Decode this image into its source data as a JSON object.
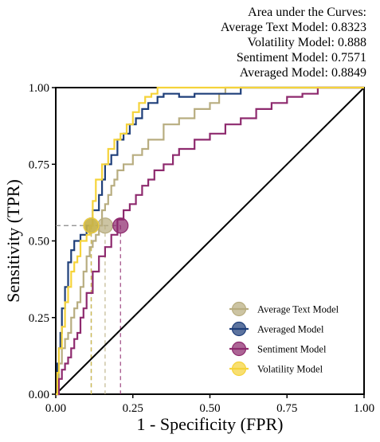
{
  "chart_data": {
    "type": "line",
    "title": "",
    "xlabel": "1 - Specificity (FPR)",
    "ylabel": "Sensitivity (TPR)",
    "xlim": [
      0,
      1
    ],
    "ylim": [
      0,
      1
    ],
    "x_ticks": [
      "0.00",
      "0.25",
      "0.50",
      "0.75",
      "1.00"
    ],
    "y_ticks": [
      "0.00",
      "0.25",
      "0.50",
      "0.75",
      "1.00"
    ],
    "grid": false,
    "legend_position": "bottom-right",
    "auc_box": {
      "lines": [
        "Area under the Curves:",
        "Average Text Model: 0.8323",
        "Volatility Model: 0.888",
        "Sentiment Model: 0.7571",
        "Averaged Model: 0.8849"
      ]
    },
    "diagonal": {
      "x": [
        0,
        1
      ],
      "y": [
        0,
        1
      ],
      "color": "#000000"
    },
    "reference_line": {
      "y": 0.55,
      "x_end": 0.21,
      "color": "#888888"
    },
    "series": [
      {
        "name": "Average Text Model",
        "color": "#b8ad80",
        "marker": {
          "x": 0.16,
          "y": 0.55
        },
        "x": [
          0,
          0.01,
          0.01,
          0.02,
          0.02,
          0.03,
          0.03,
          0.04,
          0.04,
          0.05,
          0.05,
          0.06,
          0.06,
          0.07,
          0.07,
          0.08,
          0.08,
          0.09,
          0.09,
          0.1,
          0.1,
          0.11,
          0.11,
          0.12,
          0.12,
          0.13,
          0.13,
          0.14,
          0.14,
          0.15,
          0.15,
          0.16,
          0.16,
          0.17,
          0.17,
          0.18,
          0.18,
          0.19,
          0.19,
          0.2,
          0.2,
          0.22,
          0.22,
          0.25,
          0.25,
          0.28,
          0.28,
          0.3,
          0.3,
          0.35,
          0.35,
          0.4,
          0.4,
          0.45,
          0.45,
          0.5,
          0.5,
          0.53,
          0.53,
          0.55,
          0.55,
          1.0
        ],
        "y": [
          0,
          0,
          0.1,
          0.1,
          0.15,
          0.15,
          0.18,
          0.18,
          0.2,
          0.2,
          0.25,
          0.25,
          0.28,
          0.28,
          0.3,
          0.3,
          0.35,
          0.35,
          0.4,
          0.4,
          0.45,
          0.45,
          0.48,
          0.48,
          0.5,
          0.5,
          0.52,
          0.52,
          0.55,
          0.55,
          0.6,
          0.6,
          0.62,
          0.62,
          0.65,
          0.65,
          0.68,
          0.68,
          0.7,
          0.7,
          0.73,
          0.73,
          0.75,
          0.75,
          0.78,
          0.78,
          0.8,
          0.8,
          0.83,
          0.83,
          0.88,
          0.88,
          0.9,
          0.9,
          0.93,
          0.93,
          0.95,
          0.95,
          0.98,
          0.98,
          1.0,
          1.0
        ]
      },
      {
        "name": "Averaged Model",
        "color": "#1f3f7a",
        "marker": {
          "x": 0.115,
          "y": 0.55
        },
        "x": [
          0,
          0.005,
          0.005,
          0.01,
          0.01,
          0.015,
          0.015,
          0.02,
          0.02,
          0.03,
          0.03,
          0.04,
          0.04,
          0.05,
          0.05,
          0.06,
          0.06,
          0.08,
          0.08,
          0.1,
          0.1,
          0.12,
          0.12,
          0.14,
          0.14,
          0.15,
          0.15,
          0.16,
          0.16,
          0.18,
          0.18,
          0.2,
          0.2,
          0.22,
          0.22,
          0.24,
          0.24,
          0.26,
          0.26,
          0.28,
          0.28,
          0.3,
          0.3,
          0.33,
          0.33,
          0.35,
          0.35,
          0.4,
          0.4,
          0.45,
          0.45,
          0.6,
          0.6,
          1.0
        ],
        "y": [
          0,
          0,
          0.1,
          0.1,
          0.15,
          0.15,
          0.2,
          0.2,
          0.28,
          0.28,
          0.35,
          0.35,
          0.43,
          0.43,
          0.47,
          0.47,
          0.5,
          0.5,
          0.52,
          0.52,
          0.55,
          0.55,
          0.6,
          0.6,
          0.65,
          0.65,
          0.7,
          0.7,
          0.75,
          0.75,
          0.78,
          0.78,
          0.83,
          0.83,
          0.85,
          0.85,
          0.88,
          0.88,
          0.9,
          0.9,
          0.93,
          0.93,
          0.95,
          0.95,
          0.97,
          0.97,
          0.98,
          0.98,
          0.97,
          0.97,
          0.98,
          0.98,
          1.0,
          1.0
        ]
      },
      {
        "name": "Sentiment Model",
        "color": "#8e2a6e",
        "marker": {
          "x": 0.21,
          "y": 0.55
        },
        "x": [
          0,
          0.01,
          0.01,
          0.02,
          0.02,
          0.03,
          0.03,
          0.04,
          0.04,
          0.05,
          0.05,
          0.06,
          0.06,
          0.07,
          0.07,
          0.08,
          0.08,
          0.09,
          0.09,
          0.1,
          0.1,
          0.12,
          0.12,
          0.14,
          0.14,
          0.16,
          0.16,
          0.18,
          0.18,
          0.2,
          0.2,
          0.22,
          0.22,
          0.24,
          0.24,
          0.26,
          0.26,
          0.28,
          0.28,
          0.3,
          0.3,
          0.32,
          0.32,
          0.35,
          0.35,
          0.38,
          0.38,
          0.4,
          0.4,
          0.45,
          0.45,
          0.5,
          0.5,
          0.55,
          0.55,
          0.6,
          0.6,
          0.65,
          0.65,
          0.7,
          0.7,
          0.75,
          0.75,
          0.8,
          0.8,
          0.85,
          0.85,
          1.0
        ],
        "y": [
          0,
          0,
          0.05,
          0.05,
          0.08,
          0.08,
          0.1,
          0.1,
          0.12,
          0.12,
          0.15,
          0.15,
          0.18,
          0.18,
          0.2,
          0.2,
          0.25,
          0.25,
          0.28,
          0.28,
          0.33,
          0.33,
          0.4,
          0.4,
          0.45,
          0.45,
          0.48,
          0.48,
          0.52,
          0.52,
          0.57,
          0.57,
          0.6,
          0.6,
          0.62,
          0.62,
          0.65,
          0.65,
          0.68,
          0.68,
          0.7,
          0.7,
          0.73,
          0.73,
          0.75,
          0.75,
          0.78,
          0.78,
          0.8,
          0.8,
          0.83,
          0.83,
          0.85,
          0.85,
          0.88,
          0.88,
          0.9,
          0.9,
          0.93,
          0.93,
          0.95,
          0.95,
          0.97,
          0.97,
          0.98,
          0.98,
          1.0,
          1.0
        ]
      },
      {
        "name": "Volatility Model",
        "color": "#f5d33a",
        "marker": {
          "x": 0.115,
          "y": 0.55
        },
        "x": [
          0,
          0.005,
          0.005,
          0.01,
          0.01,
          0.02,
          0.02,
          0.03,
          0.03,
          0.04,
          0.04,
          0.05,
          0.05,
          0.06,
          0.06,
          0.07,
          0.07,
          0.08,
          0.08,
          0.1,
          0.1,
          0.11,
          0.11,
          0.12,
          0.12,
          0.13,
          0.13,
          0.15,
          0.15,
          0.17,
          0.17,
          0.19,
          0.19,
          0.21,
          0.21,
          0.23,
          0.23,
          0.25,
          0.25,
          0.27,
          0.27,
          0.29,
          0.29,
          0.31,
          0.31,
          0.33,
          0.33,
          1.0
        ],
        "y": [
          0,
          0,
          0.07,
          0.07,
          0.15,
          0.15,
          0.22,
          0.22,
          0.3,
          0.3,
          0.35,
          0.35,
          0.4,
          0.4,
          0.43,
          0.43,
          0.45,
          0.45,
          0.5,
          0.5,
          0.52,
          0.52,
          0.55,
          0.55,
          0.63,
          0.63,
          0.7,
          0.7,
          0.75,
          0.75,
          0.8,
          0.8,
          0.83,
          0.83,
          0.85,
          0.85,
          0.88,
          0.88,
          0.92,
          0.92,
          0.95,
          0.95,
          0.97,
          0.97,
          0.98,
          0.98,
          1.0,
          1.0
        ]
      }
    ]
  }
}
